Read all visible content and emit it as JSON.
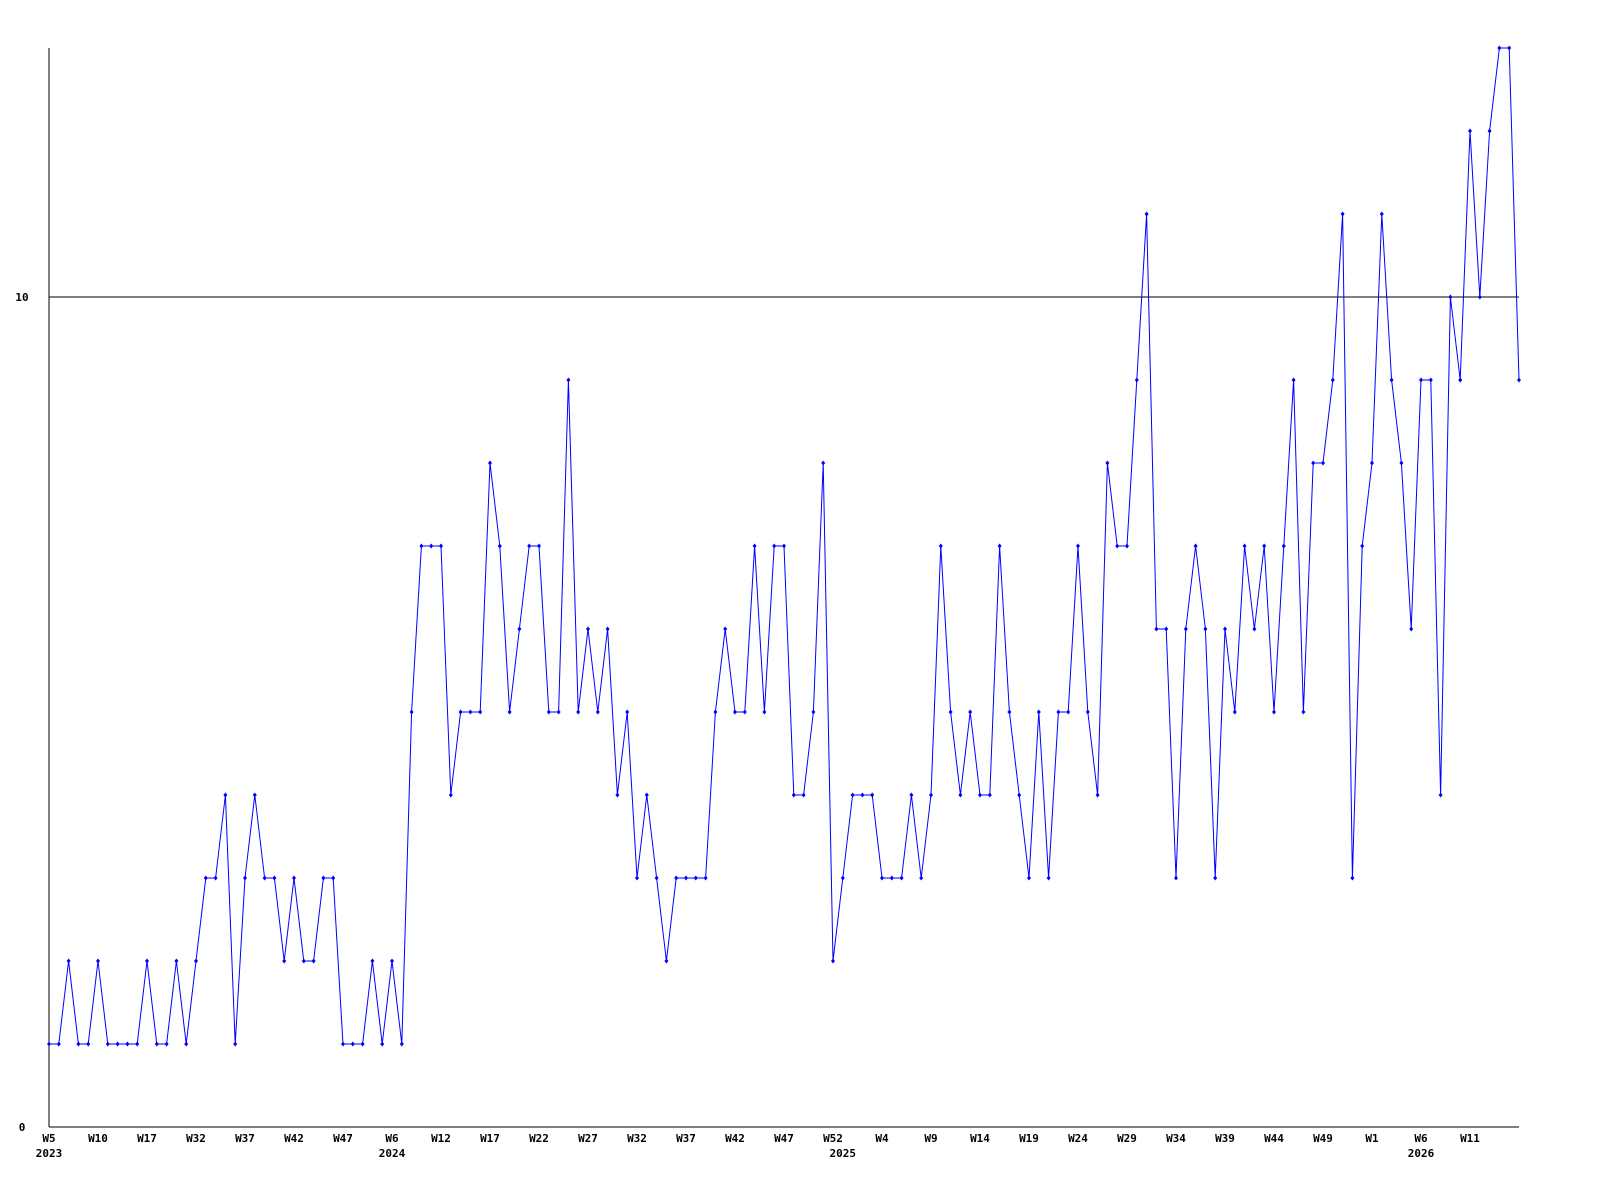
{
  "chart_data": {
    "type": "line",
    "categories": [
      "W5",
      null,
      null,
      null,
      null,
      "W10",
      null,
      null,
      null,
      null,
      "W17",
      null,
      null,
      null,
      null,
      "W32",
      null,
      null,
      null,
      null,
      "W37",
      null,
      null,
      null,
      null,
      "W42",
      null,
      null,
      null,
      null,
      "W47",
      null,
      null,
      null,
      null,
      "W6",
      null,
      null,
      null,
      null,
      "W12",
      null,
      null,
      null,
      null,
      "W17",
      null,
      null,
      null,
      null,
      "W22",
      null,
      null,
      null,
      null,
      "W27",
      null,
      null,
      null,
      null,
      "W32",
      null,
      null,
      null,
      null,
      "W37",
      null,
      null,
      null,
      null,
      "W42",
      null,
      null,
      null,
      null,
      "W47",
      null,
      null,
      null,
      null,
      "W52",
      null,
      null,
      null,
      null,
      "W4",
      null,
      null,
      null,
      null,
      "W9",
      null,
      null,
      null,
      null,
      "W14",
      null,
      null,
      null,
      null,
      "W19",
      null,
      null,
      null,
      null,
      "W24",
      null,
      null,
      null,
      null,
      "W29",
      null,
      null,
      null,
      null,
      "W34",
      null,
      null,
      null,
      null,
      "W39",
      null,
      null,
      null,
      null,
      "W44",
      null,
      null,
      null,
      null,
      "W49",
      null,
      null,
      null,
      null,
      "W1",
      null,
      null,
      null,
      null,
      "W6",
      null,
      null,
      null,
      null,
      "W11",
      null,
      null,
      null,
      null,
      null
    ],
    "year_labels": [
      "2023",
      null,
      null,
      null,
      null,
      null,
      null,
      null,
      null,
      null,
      null,
      null,
      null,
      null,
      null,
      null,
      null,
      null,
      null,
      null,
      null,
      null,
      null,
      null,
      null,
      null,
      null,
      null,
      null,
      null,
      null,
      null,
      null,
      null,
      null,
      "2024",
      null,
      null,
      null,
      null,
      null,
      null,
      null,
      null,
      null,
      null,
      null,
      null,
      null,
      null,
      null,
      null,
      null,
      null,
      null,
      null,
      null,
      null,
      null,
      null,
      null,
      null,
      null,
      null,
      null,
      null,
      null,
      null,
      null,
      null,
      null,
      null,
      null,
      null,
      null,
      null,
      null,
      null,
      null,
      null,
      null,
      "2025",
      null,
      null,
      null,
      null,
      null,
      null,
      null,
      null,
      null,
      null,
      null,
      null,
      null,
      null,
      null,
      null,
      null,
      null,
      null,
      null,
      null,
      null,
      null,
      null,
      null,
      null,
      null,
      null,
      null,
      null,
      null,
      null,
      null,
      null,
      null,
      null,
      null,
      null,
      null,
      null,
      null,
      null,
      null,
      null,
      null,
      null,
      null,
      null,
      null,
      null,
      null,
      null,
      null,
      null,
      null,
      null,
      null,
      null,
      "2026",
      null,
      null,
      null,
      null,
      null,
      null,
      null,
      null,
      null,
      null,
      null,
      null,
      null,
      null,
      null
    ],
    "series": [
      {
        "color": "#0000ff",
        "values": [
          1,
          1,
          2,
          1,
          1,
          2,
          1,
          1,
          1,
          1,
          2,
          1,
          1,
          2,
          1,
          2,
          3,
          3,
          4,
          1,
          3,
          4,
          3,
          3,
          2,
          3,
          2,
          2,
          3,
          3,
          1,
          1,
          1,
          2,
          1,
          2,
          1,
          5,
          7,
          7,
          7,
          4,
          5,
          5,
          5,
          8,
          7,
          5,
          6,
          7,
          7,
          5,
          5,
          9,
          5,
          6,
          5,
          6,
          4,
          5,
          3,
          4,
          3,
          2,
          3,
          3,
          3,
          3,
          5,
          6,
          5,
          5,
          7,
          5,
          7,
          7,
          4,
          4,
          5,
          8,
          2,
          3,
          4,
          4,
          4,
          3,
          3,
          3,
          4,
          3,
          4,
          7,
          5,
          4,
          5,
          4,
          4,
          7,
          5,
          4,
          3,
          5,
          3,
          5,
          5,
          7,
          5,
          4,
          8,
          7,
          7,
          9,
          11,
          6,
          6,
          3,
          6,
          7,
          6,
          3,
          6,
          5,
          7,
          6,
          7,
          5,
          7,
          9,
          5,
          8,
          8,
          9,
          11,
          3,
          7,
          8,
          11,
          9,
          8,
          6,
          9,
          9,
          4,
          10,
          9,
          12,
          10,
          12,
          13,
          13,
          9
        ]
      }
    ],
    "ylim": [
      0,
      13
    ],
    "yticks": [
      0,
      10
    ],
    "grid": true
  }
}
